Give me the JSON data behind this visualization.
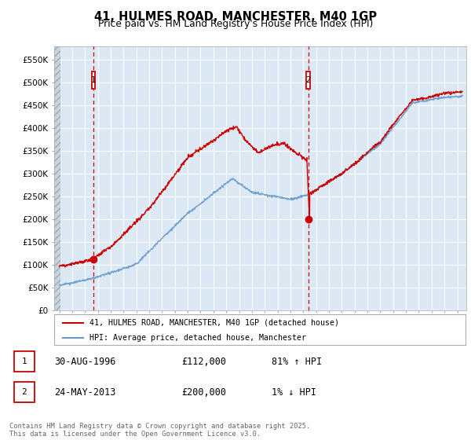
{
  "title": "41, HULMES ROAD, MANCHESTER, M40 1GP",
  "subtitle": "Price paid vs. HM Land Registry's House Price Index (HPI)",
  "ylim": [
    0,
    580000
  ],
  "yticks": [
    0,
    50000,
    100000,
    150000,
    200000,
    250000,
    300000,
    350000,
    400000,
    450000,
    500000,
    550000
  ],
  "ytick_labels": [
    "£0",
    "£50K",
    "£100K",
    "£150K",
    "£200K",
    "£250K",
    "£300K",
    "£350K",
    "£400K",
    "£450K",
    "£500K",
    "£550K"
  ],
  "xlim_start": 1993.6,
  "xlim_end": 2025.7,
  "chart_bg_color": "#dce9f5",
  "grid_color": "#ffffff",
  "line_red_color": "#cc0000",
  "line_blue_color": "#6699cc",
  "sale1_x": 1996.66,
  "sale1_y": 112000,
  "sale2_x": 2013.39,
  "sale2_y": 200000,
  "legend_line1": "41, HULMES ROAD, MANCHESTER, M40 1GP (detached house)",
  "legend_line2": "HPI: Average price, detached house, Manchester",
  "table_row1": [
    "1",
    "30-AUG-1996",
    "£112,000",
    "81% ↑ HPI"
  ],
  "table_row2": [
    "2",
    "24-MAY-2013",
    "£200,000",
    "1% ↓ HPI"
  ],
  "footnote": "Contains HM Land Registry data © Crown copyright and database right 2025.\nThis data is licensed under the Open Government Licence v3.0."
}
